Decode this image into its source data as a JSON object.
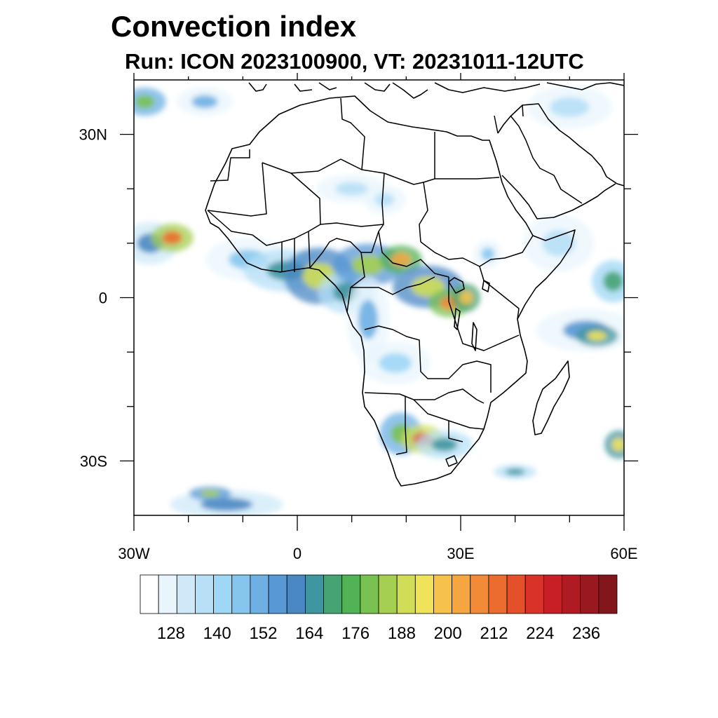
{
  "title": "Convection index",
  "subtitle": "Run: ICON 2023100900,  VT: 20231011-12UTC",
  "map": {
    "projection": "cylindrical equidistant",
    "lon_range_deg": [
      -30,
      60
    ],
    "lat_range_deg": [
      -40,
      40
    ],
    "x_tick_labels": [
      {
        "lon": -30,
        "label": "30W"
      },
      {
        "lon": 0,
        "label": "0"
      },
      {
        "lon": 30,
        "label": "30E"
      },
      {
        "lon": 60,
        "label": "60E"
      }
    ],
    "y_tick_labels": [
      {
        "lat": 30,
        "label": "30N"
      },
      {
        "lat": 0,
        "label": "0"
      },
      {
        "lat": -30,
        "label": "30S"
      }
    ],
    "x_minor_lons": [
      -20,
      -10,
      10,
      20,
      40,
      50
    ],
    "y_minor_lats": [
      20,
      10,
      -10,
      -20
    ]
  },
  "colorbar": {
    "colors": [
      "#ffffff",
      "#e8f5fc",
      "#cfe9f8",
      "#b7e0f7",
      "#9fd7f6",
      "#86c6ee",
      "#6eb0e3",
      "#5898d4",
      "#4a88c4",
      "#3f95a0",
      "#46a374",
      "#52b256",
      "#79c150",
      "#a5cf50",
      "#cfde56",
      "#f0e35a",
      "#f6c24c",
      "#f5a640",
      "#f28b37",
      "#ec6b2e",
      "#e3502a",
      "#d93329",
      "#c81f26",
      "#b01a23",
      "#9a1820",
      "#82161b"
    ],
    "labels": [
      {
        "boundary": 2,
        "text": "128"
      },
      {
        "boundary": 5,
        "text": "140"
      },
      {
        "boundary": 8,
        "text": "152"
      },
      {
        "boundary": 11,
        "text": "164"
      },
      {
        "boundary": 14,
        "text": "176"
      },
      {
        "boundary": 17,
        "text": "188"
      },
      {
        "boundary": 20,
        "text": "200"
      },
      {
        "boundary": 23,
        "text": "212"
      },
      {
        "boundary": 26,
        "text": "224"
      },
      {
        "boundary": 29,
        "text": "236"
      }
    ]
  },
  "convection_cells": [
    {
      "lon": -28,
      "lat": 36,
      "rx": 3,
      "ry": 2,
      "level": 12
    },
    {
      "lon": -17,
      "lat": 36,
      "rx": 4,
      "ry": 2,
      "level": 6
    },
    {
      "lon": -27,
      "lat": 10,
      "rx": 4,
      "ry": 3,
      "level": 8
    },
    {
      "lon": -23,
      "lat": 11,
      "rx": 3,
      "ry": 2,
      "level": 19
    },
    {
      "lon": -9,
      "lat": 7,
      "rx": 6,
      "ry": 3,
      "level": 5
    },
    {
      "lon": -2,
      "lat": 5,
      "rx": 6,
      "ry": 3,
      "level": 9
    },
    {
      "lon": 4,
      "lat": 4,
      "rx": 5,
      "ry": 4,
      "level": 14
    },
    {
      "lon": 9,
      "lat": 1,
      "rx": 4,
      "ry": 3,
      "level": 9
    },
    {
      "lon": 13,
      "lat": 6,
      "rx": 5,
      "ry": 3,
      "level": 13
    },
    {
      "lon": 19,
      "lat": 7,
      "rx": 3,
      "ry": 2,
      "level": 17
    },
    {
      "lon": 24,
      "lat": 2,
      "rx": 5,
      "ry": 3,
      "level": 14
    },
    {
      "lon": 28,
      "lat": -1,
      "rx": 3,
      "ry": 2,
      "level": 18
    },
    {
      "lon": 31,
      "lat": 0,
      "rx": 2,
      "ry": 2,
      "level": 16
    },
    {
      "lon": 35,
      "lat": 8,
      "rx": 2,
      "ry": 2,
      "level": 5
    },
    {
      "lon": 53,
      "lat": -6,
      "rx": 7,
      "ry": 3,
      "level": 7
    },
    {
      "lon": 55,
      "lat": -7,
      "rx": 3,
      "ry": 1.5,
      "level": 15
    },
    {
      "lon": 58,
      "lat": 3,
      "rx": 3,
      "ry": 3,
      "level": 10
    },
    {
      "lon": 13,
      "lat": -4,
      "rx": 3,
      "ry": 6,
      "level": 6
    },
    {
      "lon": 18,
      "lat": -12,
      "rx": 5,
      "ry": 3,
      "level": 4
    },
    {
      "lon": 19,
      "lat": -25,
      "rx": 3,
      "ry": 3,
      "level": 12
    },
    {
      "lon": 23,
      "lat": -26,
      "rx": 3,
      "ry": 2,
      "level": 20
    },
    {
      "lon": 27,
      "lat": -27,
      "rx": 4,
      "ry": 2,
      "level": 9
    },
    {
      "lon": 40,
      "lat": -32,
      "rx": 3,
      "ry": 1,
      "level": 9
    },
    {
      "lon": 59,
      "lat": -27,
      "rx": 2,
      "ry": 2,
      "level": 15
    },
    {
      "lon": -13,
      "lat": -38,
      "rx": 8,
      "ry": 2,
      "level": 8
    },
    {
      "lon": -16,
      "lat": -36,
      "rx": 3,
      "ry": 1,
      "level": 13
    },
    {
      "lon": 10,
      "lat": 20,
      "rx": 5,
      "ry": 2,
      "level": 3
    },
    {
      "lon": 16,
      "lat": 18,
      "rx": 3,
      "ry": 2,
      "level": 3
    },
    {
      "lon": 48,
      "lat": 10,
      "rx": 5,
      "ry": 4,
      "level": 3
    },
    {
      "lon": 50,
      "lat": 35,
      "rx": 6,
      "ry": 3,
      "level": 3
    }
  ]
}
